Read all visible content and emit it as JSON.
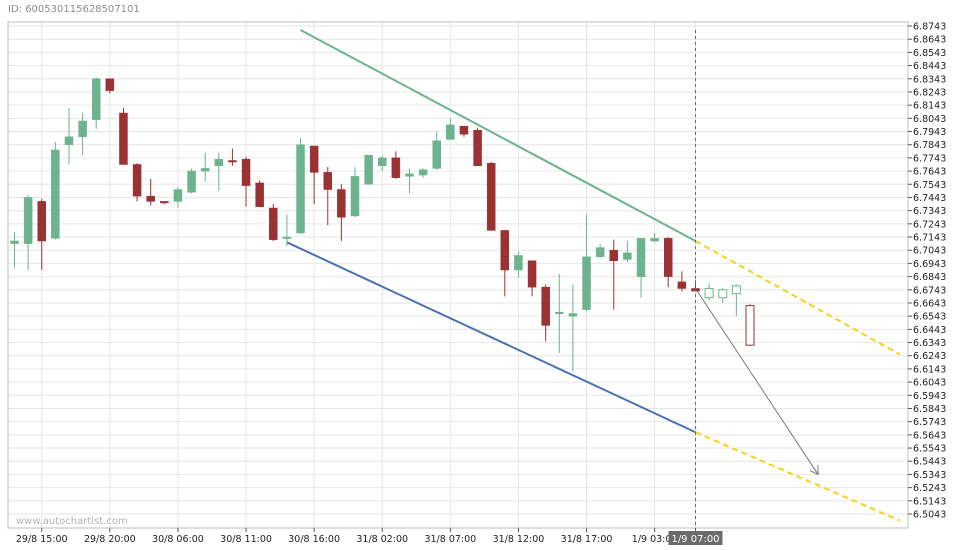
{
  "header": {
    "id_text": "ID: 600530115628507101"
  },
  "watermark": "www.autochartist.com",
  "marker_label": "1/9 07:00",
  "colors": {
    "up": "#6db38d",
    "down": "#9a3132",
    "resistance": "#6db38d",
    "support": "#4a72b0",
    "projection": "#f5d21d",
    "forecast_arrow": "#7a7a7a",
    "grid": "#e6e6e6"
  },
  "chart_data": {
    "type": "candlestick",
    "title": "",
    "y_ticks": [
      "6.8743",
      "6.8643",
      "6.8543",
      "6.8443",
      "6.8343",
      "6.8243",
      "6.8143",
      "6.8043",
      "6.7943",
      "6.7843",
      "6.7743",
      "6.7643",
      "6.7543",
      "6.7443",
      "6.7343",
      "6.7243",
      "6.7143",
      "6.7043",
      "6.6943",
      "6.6843",
      "6.6743",
      "6.6643",
      "6.6543",
      "6.6443",
      "6.6343",
      "6.6243",
      "6.6143",
      "6.6043",
      "6.5943",
      "6.5843",
      "6.5743",
      "6.5643",
      "6.5543",
      "6.5443",
      "6.5343",
      "6.5243",
      "6.5143",
      "6.5043"
    ],
    "ylim": [
      6.4993,
      6.8763
    ],
    "x_ticks": [
      {
        "label": "29/8 15:00",
        "index": 2
      },
      {
        "label": "29/8 20:00",
        "index": 7
      },
      {
        "label": "30/8 06:00",
        "index": 12
      },
      {
        "label": "30/8 11:00",
        "index": 17
      },
      {
        "label": "30/8 16:00",
        "index": 22
      },
      {
        "label": "31/8 02:00",
        "index": 27
      },
      {
        "label": "31/8 07:00",
        "index": 32
      },
      {
        "label": "31/8 12:00",
        "index": 37
      },
      {
        "label": "31/8 17:00",
        "index": 42
      },
      {
        "label": "1/9 03:00",
        "index": 47
      },
      {
        "label": "1/9 07:00",
        "index": 50
      }
    ],
    "marker_index": 50,
    "candles": [
      {
        "o": 6.7093,
        "h": 6.7183,
        "l": 6.6913,
        "c": 6.7113
      },
      {
        "o": 6.7093,
        "h": 6.7463,
        "l": 6.6893,
        "c": 6.7443
      },
      {
        "o": 6.7413,
        "h": 6.7433,
        "l": 6.6893,
        "c": 6.7113
      },
      {
        "o": 6.7133,
        "h": 6.7863,
        "l": 6.7123,
        "c": 6.7803
      },
      {
        "o": 6.7843,
        "h": 6.8123,
        "l": 6.7693,
        "c": 6.7903
      },
      {
        "o": 6.7903,
        "h": 6.8083,
        "l": 6.7763,
        "c": 6.8023
      },
      {
        "o": 6.8033,
        "h": 6.8353,
        "l": 6.7963,
        "c": 6.8343
      },
      {
        "o": 6.8343,
        "h": 6.8343,
        "l": 6.8233,
        "c": 6.8253
      },
      {
        "o": 6.8083,
        "h": 6.8123,
        "l": 6.7693,
        "c": 6.7693
      },
      {
        "o": 6.7693,
        "h": 6.7703,
        "l": 6.7413,
        "c": 6.7453
      },
      {
        "o": 6.7453,
        "h": 6.7583,
        "l": 6.7383,
        "c": 6.7413
      },
      {
        "o": 6.7413,
        "h": 6.7413,
        "l": 6.7393,
        "c": 6.7403
      },
      {
        "o": 6.7413,
        "h": 6.7523,
        "l": 6.7363,
        "c": 6.7503
      },
      {
        "o": 6.7483,
        "h": 6.7663,
        "l": 6.7473,
        "c": 6.7643
      },
      {
        "o": 6.7643,
        "h": 6.7783,
        "l": 6.7563,
        "c": 6.7663
      },
      {
        "o": 6.7683,
        "h": 6.7783,
        "l": 6.7493,
        "c": 6.7733
      },
      {
        "o": 6.7723,
        "h": 6.7813,
        "l": 6.7683,
        "c": 6.7713
      },
      {
        "o": 6.7733,
        "h": 6.7753,
        "l": 6.7373,
        "c": 6.7533
      },
      {
        "o": 6.7553,
        "h": 6.7573,
        "l": 6.7373,
        "c": 6.7373
      },
      {
        "o": 6.7363,
        "h": 6.7393,
        "l": 6.7113,
        "c": 6.7123
      },
      {
        "o": 6.7133,
        "h": 6.7313,
        "l": 6.7073,
        "c": 6.7143
      },
      {
        "o": 6.7173,
        "h": 6.7893,
        "l": 6.7173,
        "c": 6.7843
      },
      {
        "o": 6.7833,
        "h": 6.7833,
        "l": 6.7393,
        "c": 6.7633
      },
      {
        "o": 6.7633,
        "h": 6.7673,
        "l": 6.7233,
        "c": 6.7503
      },
      {
        "o": 6.7503,
        "h": 6.7543,
        "l": 6.7113,
        "c": 6.7293
      },
      {
        "o": 6.7303,
        "h": 6.7673,
        "l": 6.7293,
        "c": 6.7603
      },
      {
        "o": 6.7543,
        "h": 6.7763,
        "l": 6.7543,
        "c": 6.7763
      },
      {
        "o": 6.7683,
        "h": 6.7763,
        "l": 6.7643,
        "c": 6.7743
      },
      {
        "o": 6.7743,
        "h": 6.7793,
        "l": 6.7583,
        "c": 6.7593
      },
      {
        "o": 6.7603,
        "h": 6.7663,
        "l": 6.7473,
        "c": 6.7623
      },
      {
        "o": 6.7613,
        "h": 6.7663,
        "l": 6.7593,
        "c": 6.7653
      },
      {
        "o": 6.7663,
        "h": 6.7943,
        "l": 6.7653,
        "c": 6.7873
      },
      {
        "o": 6.7883,
        "h": 6.8043,
        "l": 6.7883,
        "c": 6.7993
      },
      {
        "o": 6.7983,
        "h": 6.7983,
        "l": 6.7903,
        "c": 6.7923
      },
      {
        "o": 6.7953,
        "h": 6.7973,
        "l": 6.7683,
        "c": 6.7683
      },
      {
        "o": 6.7703,
        "h": 6.7713,
        "l": 6.7193,
        "c": 6.7193
      },
      {
        "o": 6.7193,
        "h": 6.7193,
        "l": 6.6693,
        "c": 6.6893
      },
      {
        "o": 6.6893,
        "h": 6.7033,
        "l": 6.6833,
        "c": 6.7003
      },
      {
        "o": 6.6963,
        "h": 6.6963,
        "l": 6.6693,
        "c": 6.6763
      },
      {
        "o": 6.6763,
        "h": 6.6783,
        "l": 6.6353,
        "c": 6.6473
      },
      {
        "o": 6.6563,
        "h": 6.6863,
        "l": 6.6263,
        "c": 6.6573
      },
      {
        "o": 6.6543,
        "h": 6.6783,
        "l": 6.6123,
        "c": 6.6563
      },
      {
        "o": 6.6593,
        "h": 6.7313,
        "l": 6.6583,
        "c": 6.6993
      },
      {
        "o": 6.6993,
        "h": 6.7093,
        "l": 6.6983,
        "c": 6.7063
      },
      {
        "o": 6.7043,
        "h": 6.7123,
        "l": 6.6593,
        "c": 6.6963
      },
      {
        "o": 6.6973,
        "h": 6.7113,
        "l": 6.6953,
        "c": 6.7023
      },
      {
        "o": 6.6843,
        "h": 6.7133,
        "l": 6.6683,
        "c": 6.7133
      },
      {
        "o": 6.7113,
        "h": 6.7173,
        "l": 6.7103,
        "c": 6.7133
      },
      {
        "o": 6.7133,
        "h": 6.7143,
        "l": 6.6763,
        "c": 6.6843
      },
      {
        "o": 6.6803,
        "h": 6.6883,
        "l": 6.6733,
        "c": 6.6753
      },
      {
        "o": 6.6753,
        "h": 6.6813,
        "l": 6.6733,
        "c": 6.6733
      },
      {
        "o": 6.6683,
        "h": 6.6793,
        "l": 6.6663,
        "c": 6.6753
      },
      {
        "o": 6.6683,
        "h": 6.6753,
        "l": 6.6643,
        "c": 6.6743
      },
      {
        "o": 6.6713,
        "h": 6.6783,
        "l": 6.6543,
        "c": 6.6773
      },
      {
        "o": 6.6623,
        "h": 6.6633,
        "l": 6.6323,
        "c": 6.6323
      }
    ],
    "hollow_from_index": 51,
    "lines": [
      {
        "name": "resistance",
        "from": {
          "index": 21,
          "price": 6.8713
        },
        "to": {
          "index": 50,
          "price": 6.7113
        }
      },
      {
        "name": "support",
        "from": {
          "index": 20,
          "price": 6.7103
        },
        "to": {
          "index": 50,
          "price": 6.5663
        }
      },
      {
        "name": "resistance-projection",
        "from": {
          "index": 50,
          "price": 6.7113
        },
        "to": {
          "index": 65,
          "price": 6.6253
        },
        "dashed": true
      },
      {
        "name": "support-projection",
        "from": {
          "index": 50,
          "price": 6.5663
        },
        "to": {
          "index": 65,
          "price": 6.4993
        },
        "dashed": true
      },
      {
        "name": "forecast-arrow",
        "from": {
          "index": 50,
          "price": 6.6753
        },
        "to": {
          "index": 59,
          "price": 6.5343
        },
        "arrow": true
      }
    ]
  }
}
